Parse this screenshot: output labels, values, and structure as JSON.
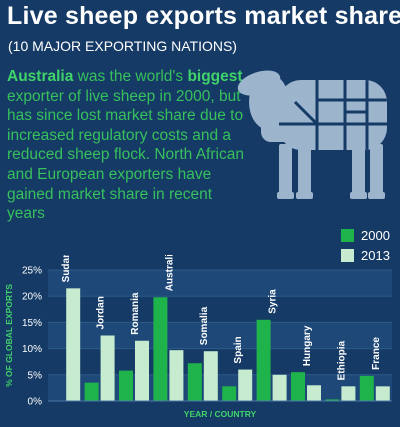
{
  "header": {
    "title": "Live sheep exports market share",
    "subtitle": "(10 MAJOR EXPORTING NATIONS)"
  },
  "intro": {
    "highlight_country": "Australia",
    "part1": " was the world's ",
    "highlight_word": "biggest",
    "part2": " exporter of live sheep in 2000, but has since lost market share due to increased regulatory costs and a reduced sheep flock. North African and European exporters have gained market share in recent years"
  },
  "colors": {
    "background": "#153a66",
    "bar_2000": "#1fb34c",
    "bar_2013": "#c6ebcf",
    "title": "#ffffff",
    "intro_text": "#37c05c",
    "axis_title": "#3fd36a",
    "sheep_fill": "#9cb4cc",
    "plot_band": "#1e4878"
  },
  "icons": {
    "illustration": "sheep-meat-cuts-diagram"
  },
  "chart_data": {
    "type": "bar",
    "categories": [
      "Sudan",
      "Jordan",
      "Romania",
      "Australia",
      "Somalia",
      "Spain",
      "Syria",
      "Hungary",
      "Ethiopia",
      "France"
    ],
    "series": [
      {
        "name": "2000",
        "values": [
          0,
          3.5,
          5.8,
          19.8,
          7.2,
          2.8,
          15.5,
          5.5,
          0.3,
          4.8
        ]
      },
      {
        "name": "2013",
        "values": [
          21.5,
          12.5,
          11.5,
          9.7,
          9.5,
          6,
          5,
          3,
          2.8,
          2.8
        ]
      }
    ],
    "ytick_labels": [
      "0%",
      "5%",
      "10%",
      "15%",
      "20%",
      "25%"
    ],
    "ylim": [
      0,
      25
    ],
    "xlabel": "YEAR / COUNTRY",
    "ylabel": "% OF GLOBAL EXPORTS",
    "legend_position": "top-right",
    "grid": true
  }
}
